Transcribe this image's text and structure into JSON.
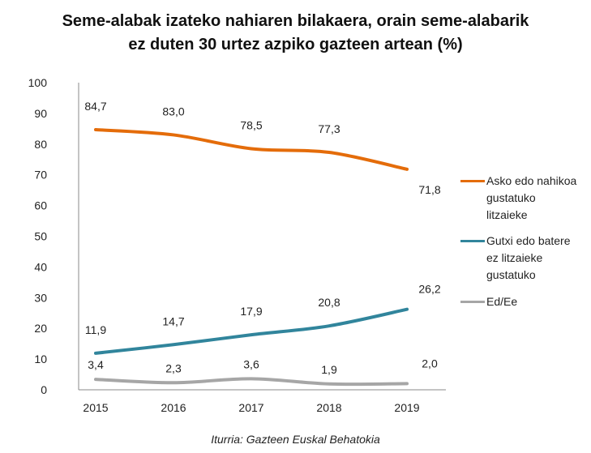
{
  "chart_data": {
    "type": "line",
    "title": "Seme-alabak izateko nahiaren bilakaera, orain seme-alabarik ez duten 30 urtez azpiko gazteen artean (%)",
    "title_lines": [
      "Seme-alabak izateko nahiaren bilakaera, orain seme-alabarik",
      "ez duten 30 urtez azpiko gazteen artean (%)"
    ],
    "source": "Iturria: Gazteen Euskal Behatokia",
    "categories": [
      "2015",
      "2016",
      "2017",
      "2018",
      "2019"
    ],
    "ylim": [
      0,
      100
    ],
    "yticks": [
      0,
      10,
      20,
      30,
      40,
      50,
      60,
      70,
      80,
      90,
      100
    ],
    "grid": false,
    "legend_position": "right",
    "series": [
      {
        "name": "Asko edo nahikoa gustatuko litzaieke",
        "name_lines": [
          "Asko edo nahikoa",
          "gustatuko",
          "litzaieke"
        ],
        "color": "#E46C0A",
        "values": [
          84.7,
          83.0,
          78.5,
          77.3,
          71.8
        ],
        "labels": [
          "84,7",
          "83,0",
          "78,5",
          "77,3",
          "71,8"
        ]
      },
      {
        "name": "Gutxi edo batere ez litzaieke gustatuko",
        "name_lines": [
          "Gutxi edo batere",
          "ez litzaieke",
          "gustatuko"
        ],
        "color": "#31859C",
        "values": [
          11.9,
          14.7,
          17.9,
          20.8,
          26.2
        ],
        "labels": [
          "11,9",
          "14,7",
          "17,9",
          "20,8",
          "26,2"
        ]
      },
      {
        "name": "Ed/Ee",
        "name_lines": [
          "Ed/Ee"
        ],
        "color": "#A6A6A6",
        "values": [
          3.4,
          2.3,
          3.6,
          1.9,
          2.0
        ],
        "labels": [
          "3,4",
          "2,3",
          "3,6",
          "1,9",
          "2,0"
        ]
      }
    ]
  }
}
